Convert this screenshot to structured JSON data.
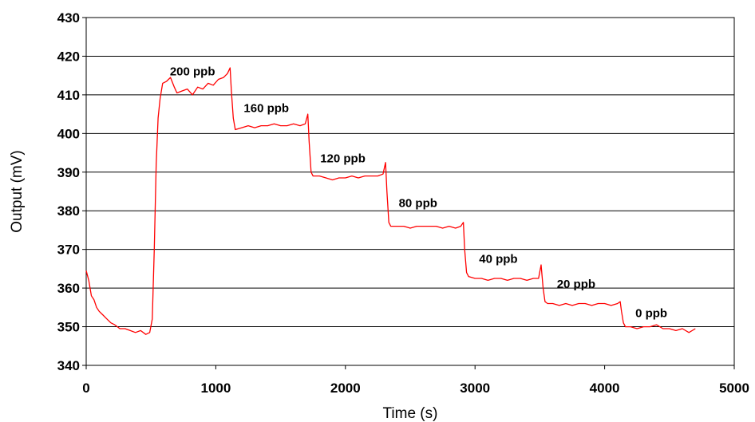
{
  "chart_data": {
    "type": "line",
    "title": "",
    "xlabel": "Time (s)",
    "ylabel": "Output (mV)",
    "xlim": [
      0,
      5000
    ],
    "ylim": [
      340,
      430
    ],
    "x_ticks": [
      0,
      1000,
      2000,
      3000,
      4000,
      5000
    ],
    "y_ticks": [
      340,
      350,
      360,
      370,
      380,
      390,
      400,
      410,
      420,
      430
    ],
    "grid": "horizontal",
    "legend": "none",
    "series": [
      {
        "color": "#ff0000",
        "points": [
          [
            0,
            364.5
          ],
          [
            20,
            362
          ],
          [
            40,
            358
          ],
          [
            60,
            357
          ],
          [
            80,
            355
          ],
          [
            100,
            354
          ],
          [
            130,
            353
          ],
          [
            160,
            352
          ],
          [
            190,
            351
          ],
          [
            220,
            350.5
          ],
          [
            260,
            349.5
          ],
          [
            300,
            349.5
          ],
          [
            340,
            349
          ],
          [
            380,
            348.5
          ],
          [
            420,
            349
          ],
          [
            460,
            348
          ],
          [
            490,
            348.5
          ],
          [
            510,
            352
          ],
          [
            525,
            370
          ],
          [
            540,
            392
          ],
          [
            555,
            404
          ],
          [
            570,
            409
          ],
          [
            590,
            413
          ],
          [
            620,
            413.5
          ],
          [
            650,
            414.5
          ],
          [
            680,
            412
          ],
          [
            700,
            410.5
          ],
          [
            740,
            411
          ],
          [
            780,
            411.5
          ],
          [
            820,
            410
          ],
          [
            860,
            412
          ],
          [
            900,
            411.5
          ],
          [
            940,
            413
          ],
          [
            980,
            412.5
          ],
          [
            1020,
            414
          ],
          [
            1060,
            414.5
          ],
          [
            1090,
            415.5
          ],
          [
            1110,
            417
          ],
          [
            1120,
            411
          ],
          [
            1135,
            404
          ],
          [
            1150,
            401
          ],
          [
            1200,
            401.5
          ],
          [
            1250,
            402
          ],
          [
            1300,
            401.5
          ],
          [
            1350,
            402
          ],
          [
            1400,
            402
          ],
          [
            1450,
            402.5
          ],
          [
            1500,
            402
          ],
          [
            1550,
            402
          ],
          [
            1600,
            402.5
          ],
          [
            1650,
            402
          ],
          [
            1690,
            402.5
          ],
          [
            1710,
            405
          ],
          [
            1720,
            398
          ],
          [
            1735,
            390
          ],
          [
            1750,
            389
          ],
          [
            1800,
            389
          ],
          [
            1850,
            388.5
          ],
          [
            1900,
            388
          ],
          [
            1950,
            388.5
          ],
          [
            2000,
            388.5
          ],
          [
            2050,
            389
          ],
          [
            2100,
            388.5
          ],
          [
            2150,
            389
          ],
          [
            2200,
            389
          ],
          [
            2250,
            389
          ],
          [
            2290,
            389.5
          ],
          [
            2310,
            392.5
          ],
          [
            2320,
            385
          ],
          [
            2335,
            377
          ],
          [
            2350,
            376
          ],
          [
            2400,
            376
          ],
          [
            2450,
            376
          ],
          [
            2500,
            375.5
          ],
          [
            2550,
            376
          ],
          [
            2600,
            376
          ],
          [
            2650,
            376
          ],
          [
            2700,
            376
          ],
          [
            2750,
            375.5
          ],
          [
            2800,
            376
          ],
          [
            2850,
            375.5
          ],
          [
            2890,
            376
          ],
          [
            2910,
            377
          ],
          [
            2920,
            370
          ],
          [
            2935,
            364
          ],
          [
            2950,
            363
          ],
          [
            3000,
            362.5
          ],
          [
            3050,
            362.5
          ],
          [
            3100,
            362
          ],
          [
            3150,
            362.5
          ],
          [
            3200,
            362.5
          ],
          [
            3250,
            362
          ],
          [
            3300,
            362.5
          ],
          [
            3350,
            362.5
          ],
          [
            3400,
            362
          ],
          [
            3450,
            362.5
          ],
          [
            3490,
            362.5
          ],
          [
            3510,
            366
          ],
          [
            3525,
            360
          ],
          [
            3540,
            356.5
          ],
          [
            3560,
            356
          ],
          [
            3600,
            356
          ],
          [
            3650,
            355.5
          ],
          [
            3700,
            356
          ],
          [
            3750,
            355.5
          ],
          [
            3800,
            356
          ],
          [
            3850,
            356
          ],
          [
            3900,
            355.5
          ],
          [
            3950,
            356
          ],
          [
            4000,
            356
          ],
          [
            4050,
            355.5
          ],
          [
            4100,
            356
          ],
          [
            4120,
            356.5
          ],
          [
            4130,
            354
          ],
          [
            4145,
            351
          ],
          [
            4160,
            350
          ],
          [
            4200,
            350
          ],
          [
            4250,
            349.5
          ],
          [
            4300,
            350
          ],
          [
            4350,
            350
          ],
          [
            4400,
            350.5
          ],
          [
            4450,
            349.5
          ],
          [
            4500,
            349.5
          ],
          [
            4550,
            349
          ],
          [
            4600,
            349.5
          ],
          [
            4650,
            348.5
          ],
          [
            4700,
            349.5
          ]
        ]
      }
    ],
    "annotations": [
      {
        "text": "200 ppb",
        "x": 820,
        "y": 415
      },
      {
        "text": "160 ppb",
        "x": 1390,
        "y": 405.5
      },
      {
        "text": "120 ppb",
        "x": 1980,
        "y": 392.5
      },
      {
        "text": "80 ppb",
        "x": 2560,
        "y": 381
      },
      {
        "text": "40 ppb",
        "x": 3180,
        "y": 366.5
      },
      {
        "text": "20 ppb",
        "x": 3780,
        "y": 360
      },
      {
        "text": "0 ppb",
        "x": 4360,
        "y": 352.5
      }
    ]
  }
}
